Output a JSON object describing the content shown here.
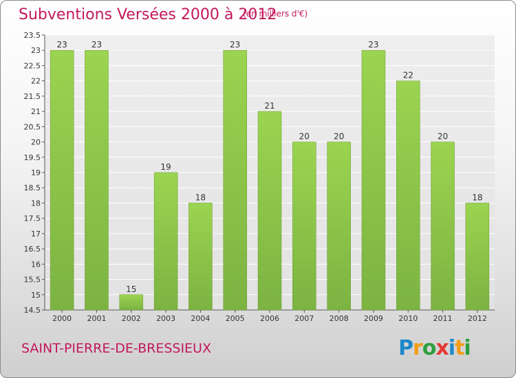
{
  "header": {
    "title": "Subventions Versées 2000 à 2012",
    "unit": "(en milliers d'€)"
  },
  "footer": {
    "commune": "SAINT-PIERRE-DE-BRESSIEUX",
    "logo_text": "Proxiti",
    "logo_letters": [
      {
        "ch": "P",
        "color": "#1e88c8"
      },
      {
        "ch": "r",
        "color": "#f39c12"
      },
      {
        "ch": "o",
        "color": "#2e9e3e"
      },
      {
        "ch": "x",
        "color": "#e53935"
      },
      {
        "ch": "i",
        "color": "#1e88c8"
      },
      {
        "ch": "t",
        "color": "#f39c12"
      },
      {
        "ch": "i",
        "color": "#2e9e3e"
      }
    ]
  },
  "chart_data": {
    "type": "bar",
    "title": "Subventions Versées 2000 à 2012",
    "unit": "(en milliers d'€)",
    "categories": [
      "2000",
      "2001",
      "2002",
      "2003",
      "2004",
      "2005",
      "2006",
      "2007",
      "2008",
      "2009",
      "2010",
      "2011",
      "2012"
    ],
    "values": [
      23,
      23,
      15,
      19,
      18,
      23,
      21,
      20,
      20,
      23,
      22,
      20,
      18
    ],
    "ylim": [
      14.5,
      23.5
    ],
    "yticks": [
      "14.5",
      "15",
      "15.5",
      "16",
      "16.5",
      "17",
      "17.5",
      "18",
      "18.5",
      "19",
      "19.5",
      "20",
      "20.5",
      "21",
      "21.5",
      "22",
      "22.5",
      "23",
      "23.5"
    ],
    "grid": true,
    "bar_color": "#7cb342",
    "bar_color_light": "#9bd450",
    "grid_color": "#ffffff",
    "axis_color": "#555555",
    "label_color": "#333333"
  }
}
